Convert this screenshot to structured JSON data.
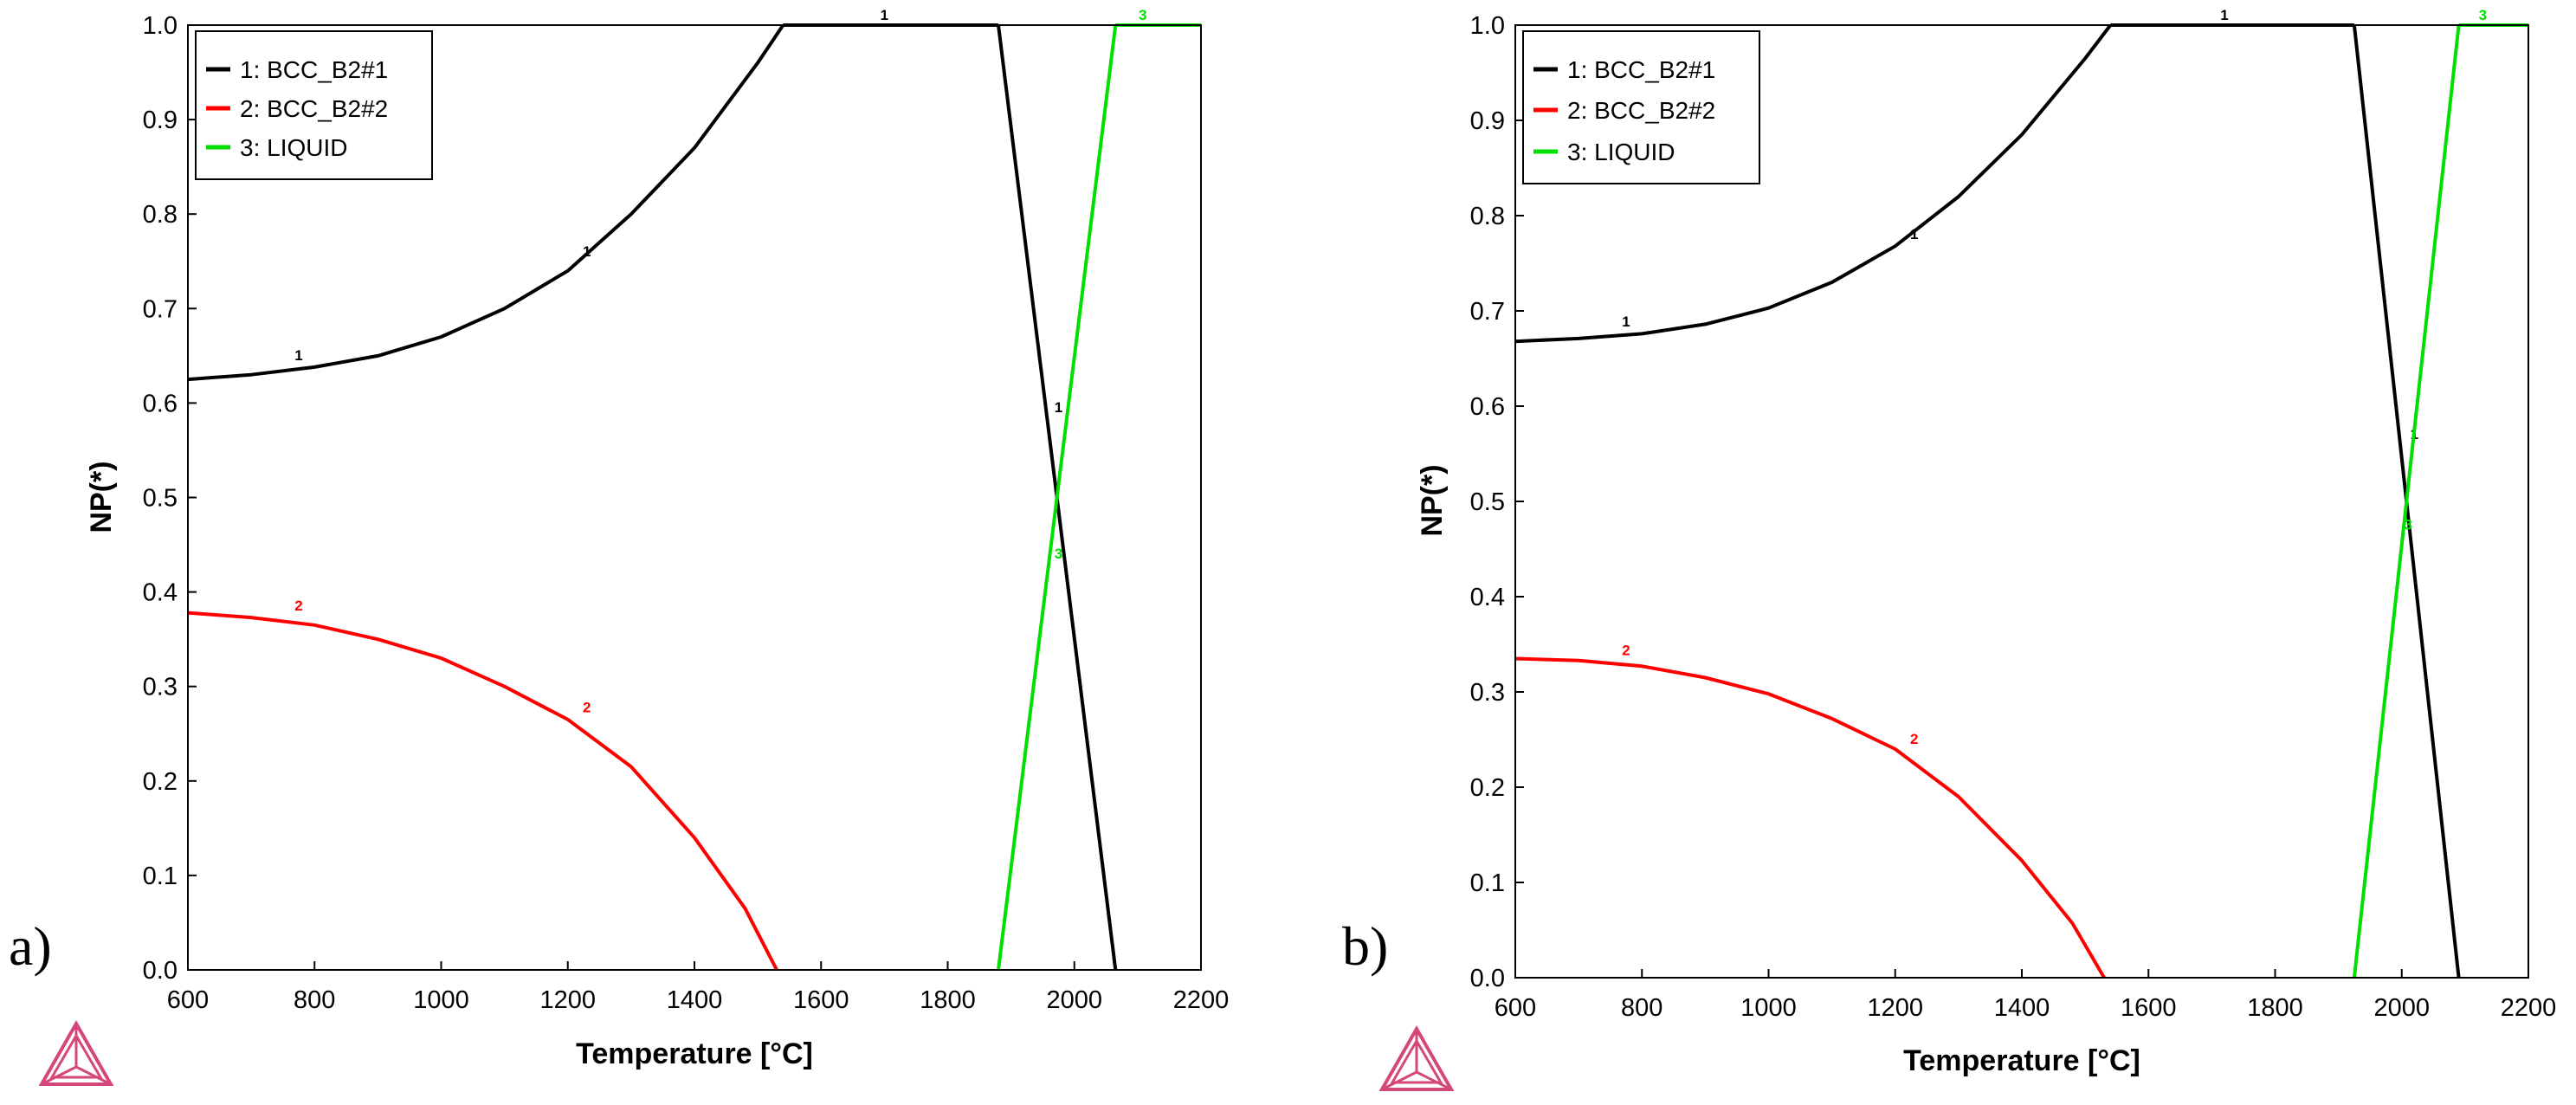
{
  "chart_data": [
    {
      "panel_label": "a)",
      "type": "line",
      "title": "",
      "xlabel": "Temperature [°C]",
      "ylabel": "NP(*)",
      "xlim": [
        600,
        2200
      ],
      "ylim": [
        0.0,
        1.0
      ],
      "xticks": [
        600,
        800,
        1000,
        1200,
        1400,
        1600,
        1800,
        2000,
        2200
      ],
      "yticks": [
        "0.0",
        "0.1",
        "0.2",
        "0.3",
        "0.4",
        "0.5",
        "0.6",
        "0.7",
        "0.8",
        "0.9",
        "1.0"
      ],
      "legend": {
        "position": "top-left",
        "entries": [
          {
            "label": "1: BCC_B2#1",
            "color": "#000000"
          },
          {
            "label": "2: BCC_B2#2",
            "color": "#ff0000"
          },
          {
            "label": "3: LIQUID",
            "color": "#00e000"
          }
        ]
      },
      "series": [
        {
          "name": "1: BCC_B2#1",
          "id": "1",
          "color": "#000000",
          "segments": [
            [
              [
                600,
                0.625
              ],
              [
                700,
                0.63
              ],
              [
                800,
                0.638
              ],
              [
                900,
                0.65
              ],
              [
                1000,
                0.67
              ],
              [
                1100,
                0.7
              ],
              [
                1200,
                0.74
              ],
              [
                1300,
                0.8
              ],
              [
                1400,
                0.87
              ],
              [
                1500,
                0.96
              ],
              [
                1540,
                1.0
              ]
            ],
            [
              [
                1540,
                1.0
              ],
              [
                1880,
                1.0
              ]
            ],
            [
              [
                1880,
                1.0
              ],
              [
                2065,
                0.0
              ]
            ]
          ],
          "curve_labels": [
            [
              775,
              0.64
            ],
            [
              1230,
              0.75
            ],
            [
              1700,
              1.0
            ],
            [
              1975,
              0.585
            ]
          ]
        },
        {
          "name": "2: BCC_B2#2",
          "id": "2",
          "color": "#ff0000",
          "segments": [
            [
              [
                600,
                0.378
              ],
              [
                700,
                0.373
              ],
              [
                800,
                0.365
              ],
              [
                900,
                0.35
              ],
              [
                1000,
                0.33
              ],
              [
                1100,
                0.3
              ],
              [
                1200,
                0.265
              ],
              [
                1300,
                0.215
              ],
              [
                1400,
                0.14
              ],
              [
                1480,
                0.065
              ],
              [
                1530,
                0.0
              ]
            ]
          ],
          "curve_labels": [
            [
              775,
              0.375
            ],
            [
              1230,
              0.267
            ]
          ]
        },
        {
          "name": "3: LIQUID",
          "id": "3",
          "color": "#00e000",
          "segments": [
            [
              [
                1880,
                0.0
              ],
              [
                2065,
                1.0
              ]
            ],
            [
              [
                2065,
                1.0
              ],
              [
                2200,
                1.0
              ]
            ]
          ],
          "curve_labels": [
            [
              2108,
              1.0
            ],
            [
              1975,
              0.43
            ]
          ]
        }
      ]
    },
    {
      "panel_label": "b)",
      "type": "line",
      "title": "",
      "xlabel": "Temperature [°C]",
      "ylabel": "NP(*)",
      "xlim": [
        600,
        2200
      ],
      "ylim": [
        0.0,
        1.0
      ],
      "xticks": [
        600,
        800,
        1000,
        1200,
        1400,
        1600,
        1800,
        2000,
        2200
      ],
      "yticks": [
        "0.0",
        "0.1",
        "0.2",
        "0.3",
        "0.4",
        "0.5",
        "0.6",
        "0.7",
        "0.8",
        "0.9",
        "1.0"
      ],
      "legend": {
        "position": "top-left",
        "entries": [
          {
            "label": "1: BCC_B2#1",
            "color": "#000000"
          },
          {
            "label": "2: BCC_B2#2",
            "color": "#ff0000"
          },
          {
            "label": "3: LIQUID",
            "color": "#00e000"
          }
        ]
      },
      "series": [
        {
          "name": "1: BCC_B2#1",
          "id": "1",
          "color": "#000000",
          "segments": [
            [
              [
                600,
                0.668
              ],
              [
                700,
                0.671
              ],
              [
                800,
                0.676
              ],
              [
                900,
                0.686
              ],
              [
                1000,
                0.703
              ],
              [
                1100,
                0.73
              ],
              [
                1200,
                0.768
              ],
              [
                1300,
                0.82
              ],
              [
                1400,
                0.885
              ],
              [
                1500,
                0.965
              ],
              [
                1540,
                1.0
              ]
            ],
            [
              [
                1540,
                1.0
              ],
              [
                1925,
                1.0
              ]
            ],
            [
              [
                1925,
                1.0
              ],
              [
                2090,
                0.0
              ]
            ]
          ],
          "curve_labels": [
            [
              775,
              0.678
            ],
            [
              1230,
              0.77
            ],
            [
              1720,
              1.0
            ],
            [
              2020,
              0.56
            ]
          ]
        },
        {
          "name": "2: BCC_B2#2",
          "id": "2",
          "color": "#ff0000",
          "segments": [
            [
              [
                600,
                0.335
              ],
              [
                700,
                0.333
              ],
              [
                800,
                0.327
              ],
              [
                900,
                0.315
              ],
              [
                1000,
                0.298
              ],
              [
                1100,
                0.272
              ],
              [
                1200,
                0.24
              ],
              [
                1300,
                0.19
              ],
              [
                1400,
                0.123
              ],
              [
                1480,
                0.057
              ],
              [
                1530,
                0.0
              ]
            ]
          ],
          "curve_labels": [
            [
              775,
              0.333
            ],
            [
              1230,
              0.24
            ]
          ]
        },
        {
          "name": "3: LIQUID",
          "id": "3",
          "color": "#00e000",
          "segments": [
            [
              [
                1925,
                0.0
              ],
              [
                2090,
                1.0
              ]
            ],
            [
              [
                2090,
                1.0
              ],
              [
                2200,
                1.0
              ]
            ]
          ],
          "curve_labels": [
            [
              2128,
              1.0
            ],
            [
              2010,
              0.465
            ]
          ]
        }
      ]
    }
  ]
}
